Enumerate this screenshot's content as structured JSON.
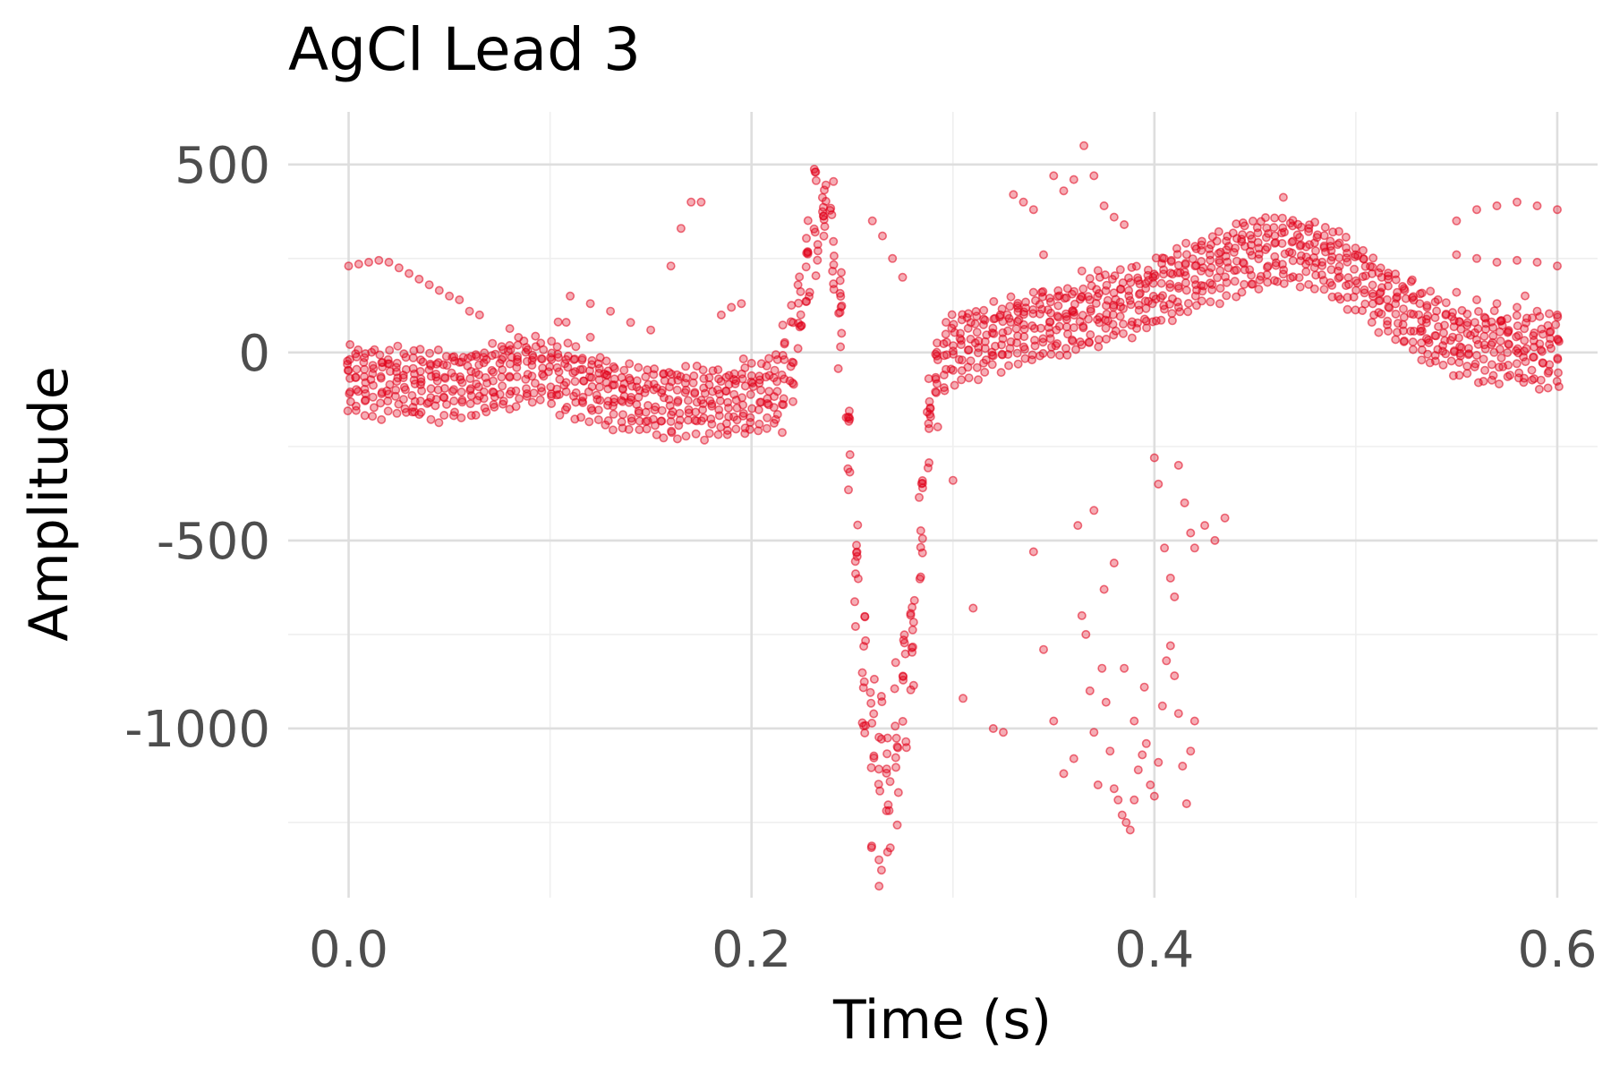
{
  "chart_data": {
    "type": "scatter",
    "title": "AgCl Lead 3",
    "xlabel": "Time (s)",
    "ylabel": "Amplitude",
    "xlim": [
      -0.03,
      0.62
    ],
    "ylim": [
      -1450,
      640
    ],
    "x_ticks": [
      0.0,
      0.2,
      0.4,
      0.6
    ],
    "x_tick_labels": [
      "0.0",
      "0.2",
      "0.4",
      "0.6"
    ],
    "y_ticks": [
      500,
      0,
      -500,
      -1000
    ],
    "y_tick_labels": [
      "500",
      "0",
      "-500",
      "-1000"
    ],
    "grid": true,
    "legend": "none",
    "point_color": "#e0001a",
    "point_alpha": 0.35,
    "sample_interval_s": 0.004,
    "trace_offsets": [
      -120,
      -95,
      -75,
      -55,
      -35,
      -15,
      0,
      15,
      30,
      50
    ],
    "waveform": [
      [
        0.0,
        -40
      ],
      [
        0.02,
        -45
      ],
      [
        0.04,
        -55
      ],
      [
        0.06,
        -50
      ],
      [
        0.08,
        -25
      ],
      [
        0.09,
        -5
      ],
      [
        0.1,
        -25
      ],
      [
        0.12,
        -60
      ],
      [
        0.14,
        -90
      ],
      [
        0.16,
        -100
      ],
      [
        0.18,
        -100
      ],
      [
        0.2,
        -90
      ],
      [
        0.21,
        -75
      ],
      [
        0.215,
        -45
      ],
      [
        0.22,
        30
      ],
      [
        0.225,
        200
      ],
      [
        0.23,
        360
      ],
      [
        0.235,
        460
      ],
      [
        0.24,
        380
      ],
      [
        0.245,
        50
      ],
      [
        0.25,
        -400
      ],
      [
        0.255,
        -850
      ],
      [
        0.26,
        -1150
      ],
      [
        0.265,
        -1250
      ],
      [
        0.27,
        -1150
      ],
      [
        0.275,
        -980
      ],
      [
        0.28,
        -780
      ],
      [
        0.285,
        -400
      ],
      [
        0.29,
        -60
      ],
      [
        0.295,
        10
      ],
      [
        0.3,
        40
      ],
      [
        0.33,
        90
      ],
      [
        0.36,
        120
      ],
      [
        0.4,
        190
      ],
      [
        0.44,
        280
      ],
      [
        0.47,
        310
      ],
      [
        0.5,
        240
      ],
      [
        0.52,
        150
      ],
      [
        0.55,
        60
      ],
      [
        0.58,
        40
      ],
      [
        0.6,
        30
      ]
    ],
    "outliers": [
      [
        0.0,
        230
      ],
      [
        0.005,
        235
      ],
      [
        0.01,
        240
      ],
      [
        0.015,
        245
      ],
      [
        0.02,
        240
      ],
      [
        0.025,
        225
      ],
      [
        0.03,
        210
      ],
      [
        0.035,
        195
      ],
      [
        0.04,
        180
      ],
      [
        0.045,
        165
      ],
      [
        0.05,
        150
      ],
      [
        0.055,
        140
      ],
      [
        0.06,
        110
      ],
      [
        0.065,
        100
      ],
      [
        0.11,
        150
      ],
      [
        0.12,
        130
      ],
      [
        0.13,
        110
      ],
      [
        0.14,
        80
      ],
      [
        0.15,
        60
      ],
      [
        0.16,
        230
      ],
      [
        0.165,
        330
      ],
      [
        0.17,
        400
      ],
      [
        0.175,
        400
      ],
      [
        0.185,
        100
      ],
      [
        0.19,
        120
      ],
      [
        0.195,
        130
      ],
      [
        0.26,
        350
      ],
      [
        0.265,
        310
      ],
      [
        0.27,
        250
      ],
      [
        0.275,
        200
      ],
      [
        0.3,
        -340
      ],
      [
        0.305,
        -920
      ],
      [
        0.31,
        -680
      ],
      [
        0.32,
        -1000
      ],
      [
        0.325,
        -1010
      ],
      [
        0.33,
        420
      ],
      [
        0.335,
        400
      ],
      [
        0.34,
        380
      ],
      [
        0.345,
        260
      ],
      [
        0.35,
        470
      ],
      [
        0.355,
        430
      ],
      [
        0.36,
        460
      ],
      [
        0.365,
        550
      ],
      [
        0.37,
        470
      ],
      [
        0.375,
        390
      ],
      [
        0.38,
        360
      ],
      [
        0.385,
        340
      ],
      [
        0.34,
        -530
      ],
      [
        0.345,
        -790
      ],
      [
        0.35,
        -980
      ],
      [
        0.355,
        -1120
      ],
      [
        0.36,
        -1080
      ],
      [
        0.362,
        -460
      ],
      [
        0.364,
        -700
      ],
      [
        0.366,
        -750
      ],
      [
        0.368,
        -900
      ],
      [
        0.37,
        -1010
      ],
      [
        0.372,
        -1150
      ],
      [
        0.374,
        -840
      ],
      [
        0.376,
        -930
      ],
      [
        0.378,
        -1060
      ],
      [
        0.38,
        -1160
      ],
      [
        0.382,
        -1190
      ],
      [
        0.384,
        -1230
      ],
      [
        0.386,
        -1250
      ],
      [
        0.388,
        -1270
      ],
      [
        0.39,
        -1190
      ],
      [
        0.392,
        -1110
      ],
      [
        0.394,
        -1070
      ],
      [
        0.396,
        -1040
      ],
      [
        0.398,
        -1150
      ],
      [
        0.4,
        -1180
      ],
      [
        0.402,
        -1090
      ],
      [
        0.404,
        -940
      ],
      [
        0.406,
        -820
      ],
      [
        0.408,
        -780
      ],
      [
        0.41,
        -860
      ],
      [
        0.412,
        -960
      ],
      [
        0.414,
        -1100
      ],
      [
        0.416,
        -1200
      ],
      [
        0.418,
        -1060
      ],
      [
        0.42,
        -980
      ],
      [
        0.37,
        -420
      ],
      [
        0.375,
        -630
      ],
      [
        0.38,
        -560
      ],
      [
        0.385,
        -840
      ],
      [
        0.39,
        -980
      ],
      [
        0.395,
        -890
      ],
      [
        0.4,
        -280
      ],
      [
        0.402,
        -350
      ],
      [
        0.405,
        -520
      ],
      [
        0.408,
        -600
      ],
      [
        0.41,
        -650
      ],
      [
        0.412,
        -300
      ],
      [
        0.415,
        -400
      ],
      [
        0.418,
        -480
      ],
      [
        0.42,
        -520
      ],
      [
        0.425,
        -460
      ],
      [
        0.43,
        -500
      ],
      [
        0.435,
        -440
      ],
      [
        0.55,
        350
      ],
      [
        0.56,
        380
      ],
      [
        0.57,
        390
      ],
      [
        0.58,
        400
      ],
      [
        0.59,
        390
      ],
      [
        0.6,
        380
      ],
      [
        0.55,
        260
      ],
      [
        0.56,
        250
      ],
      [
        0.57,
        240
      ],
      [
        0.58,
        245
      ],
      [
        0.59,
        240
      ],
      [
        0.6,
        230
      ],
      [
        0.55,
        160
      ],
      [
        0.56,
        140
      ],
      [
        0.57,
        130
      ],
      [
        0.58,
        120
      ],
      [
        0.59,
        110
      ],
      [
        0.6,
        100
      ]
    ]
  }
}
